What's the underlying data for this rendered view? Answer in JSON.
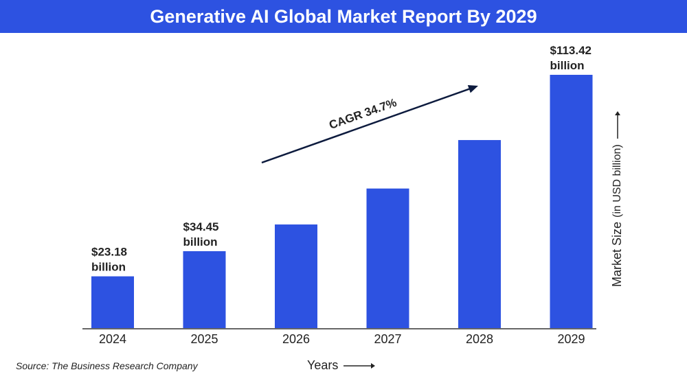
{
  "chart_data": {
    "type": "bar",
    "title": "Generative AI Global Market Report By 2029",
    "categories": [
      "2024",
      "2025",
      "2026",
      "2027",
      "2028",
      "2029"
    ],
    "values": [
      23.18,
      34.45,
      46.4,
      62.5,
      84.2,
      113.42
    ],
    "data_labels": [
      {
        "index": 0,
        "value": "$23.18",
        "unit": "billion"
      },
      {
        "index": 1,
        "value": "$34.45",
        "unit": "billion"
      },
      {
        "index": 5,
        "value": "$113.42",
        "unit": "billion"
      }
    ],
    "annotation": "CAGR 34.7%",
    "xlabel": "Years",
    "ylabel": "Market Size",
    "ylabel_unit": "(in USD billion)",
    "ylim": [
      0,
      113.42
    ],
    "grid": false,
    "bar_color": "#2d52e1"
  },
  "source": "Source: The Business Research Company",
  "colors": {
    "accent": "#2d52e1",
    "text": "#222222",
    "arrow": "#0d1b3e"
  }
}
